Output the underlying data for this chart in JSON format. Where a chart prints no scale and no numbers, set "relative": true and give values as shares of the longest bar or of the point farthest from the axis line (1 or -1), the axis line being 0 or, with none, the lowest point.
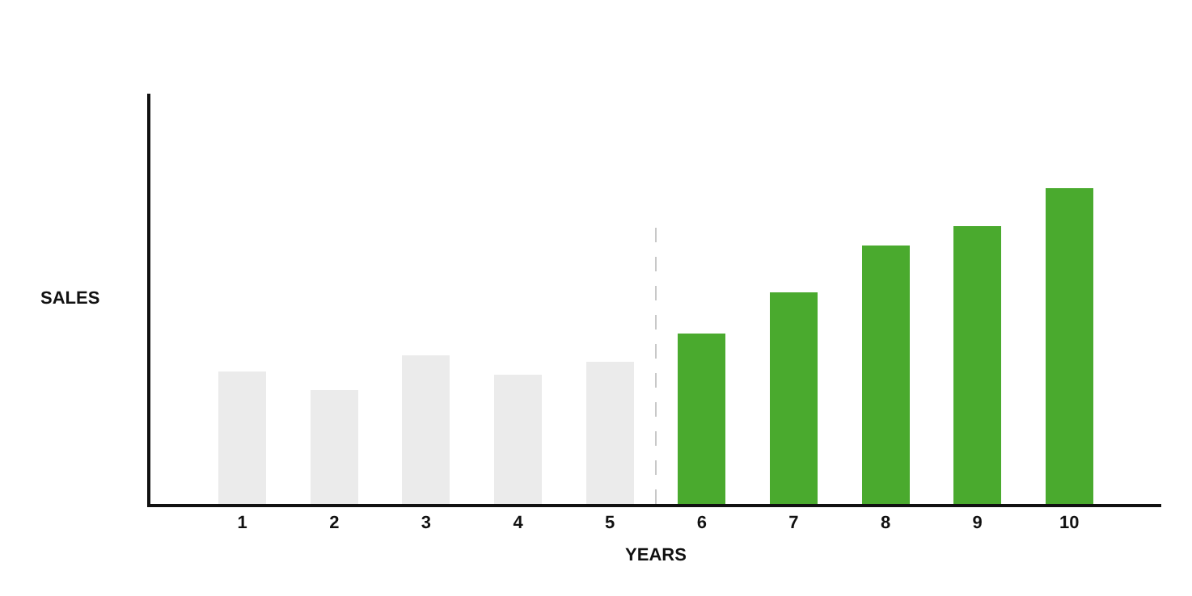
{
  "chart_data": {
    "type": "bar",
    "relative": true,
    "xlabel": "YEARS",
    "ylabel": "SALES",
    "x": [
      1,
      2,
      3,
      4,
      5,
      6,
      7,
      8,
      9,
      10
    ],
    "xlim": [
      0,
      11
    ],
    "xticks": [
      1,
      2,
      3,
      4,
      5,
      6,
      7,
      8,
      9,
      10
    ],
    "values": [
      0.42,
      0.36,
      0.47,
      0.41,
      0.45,
      0.54,
      0.67,
      0.82,
      0.88,
      1
    ],
    "colors": [
      "#ebebeb",
      "#ebebeb",
      "#ebebeb",
      "#ebebeb",
      "#ebebeb",
      "#4aaa2e",
      "#4aaa2e",
      "#4aaa2e",
      "#4aaa2e",
      "#4aaa2e"
    ],
    "ref_lines": [
      {
        "axis": "x",
        "value": 5.5,
        "color": "#c8c8c8",
        "line_style": "dashed"
      }
    ],
    "grid": false,
    "legend": false
  }
}
